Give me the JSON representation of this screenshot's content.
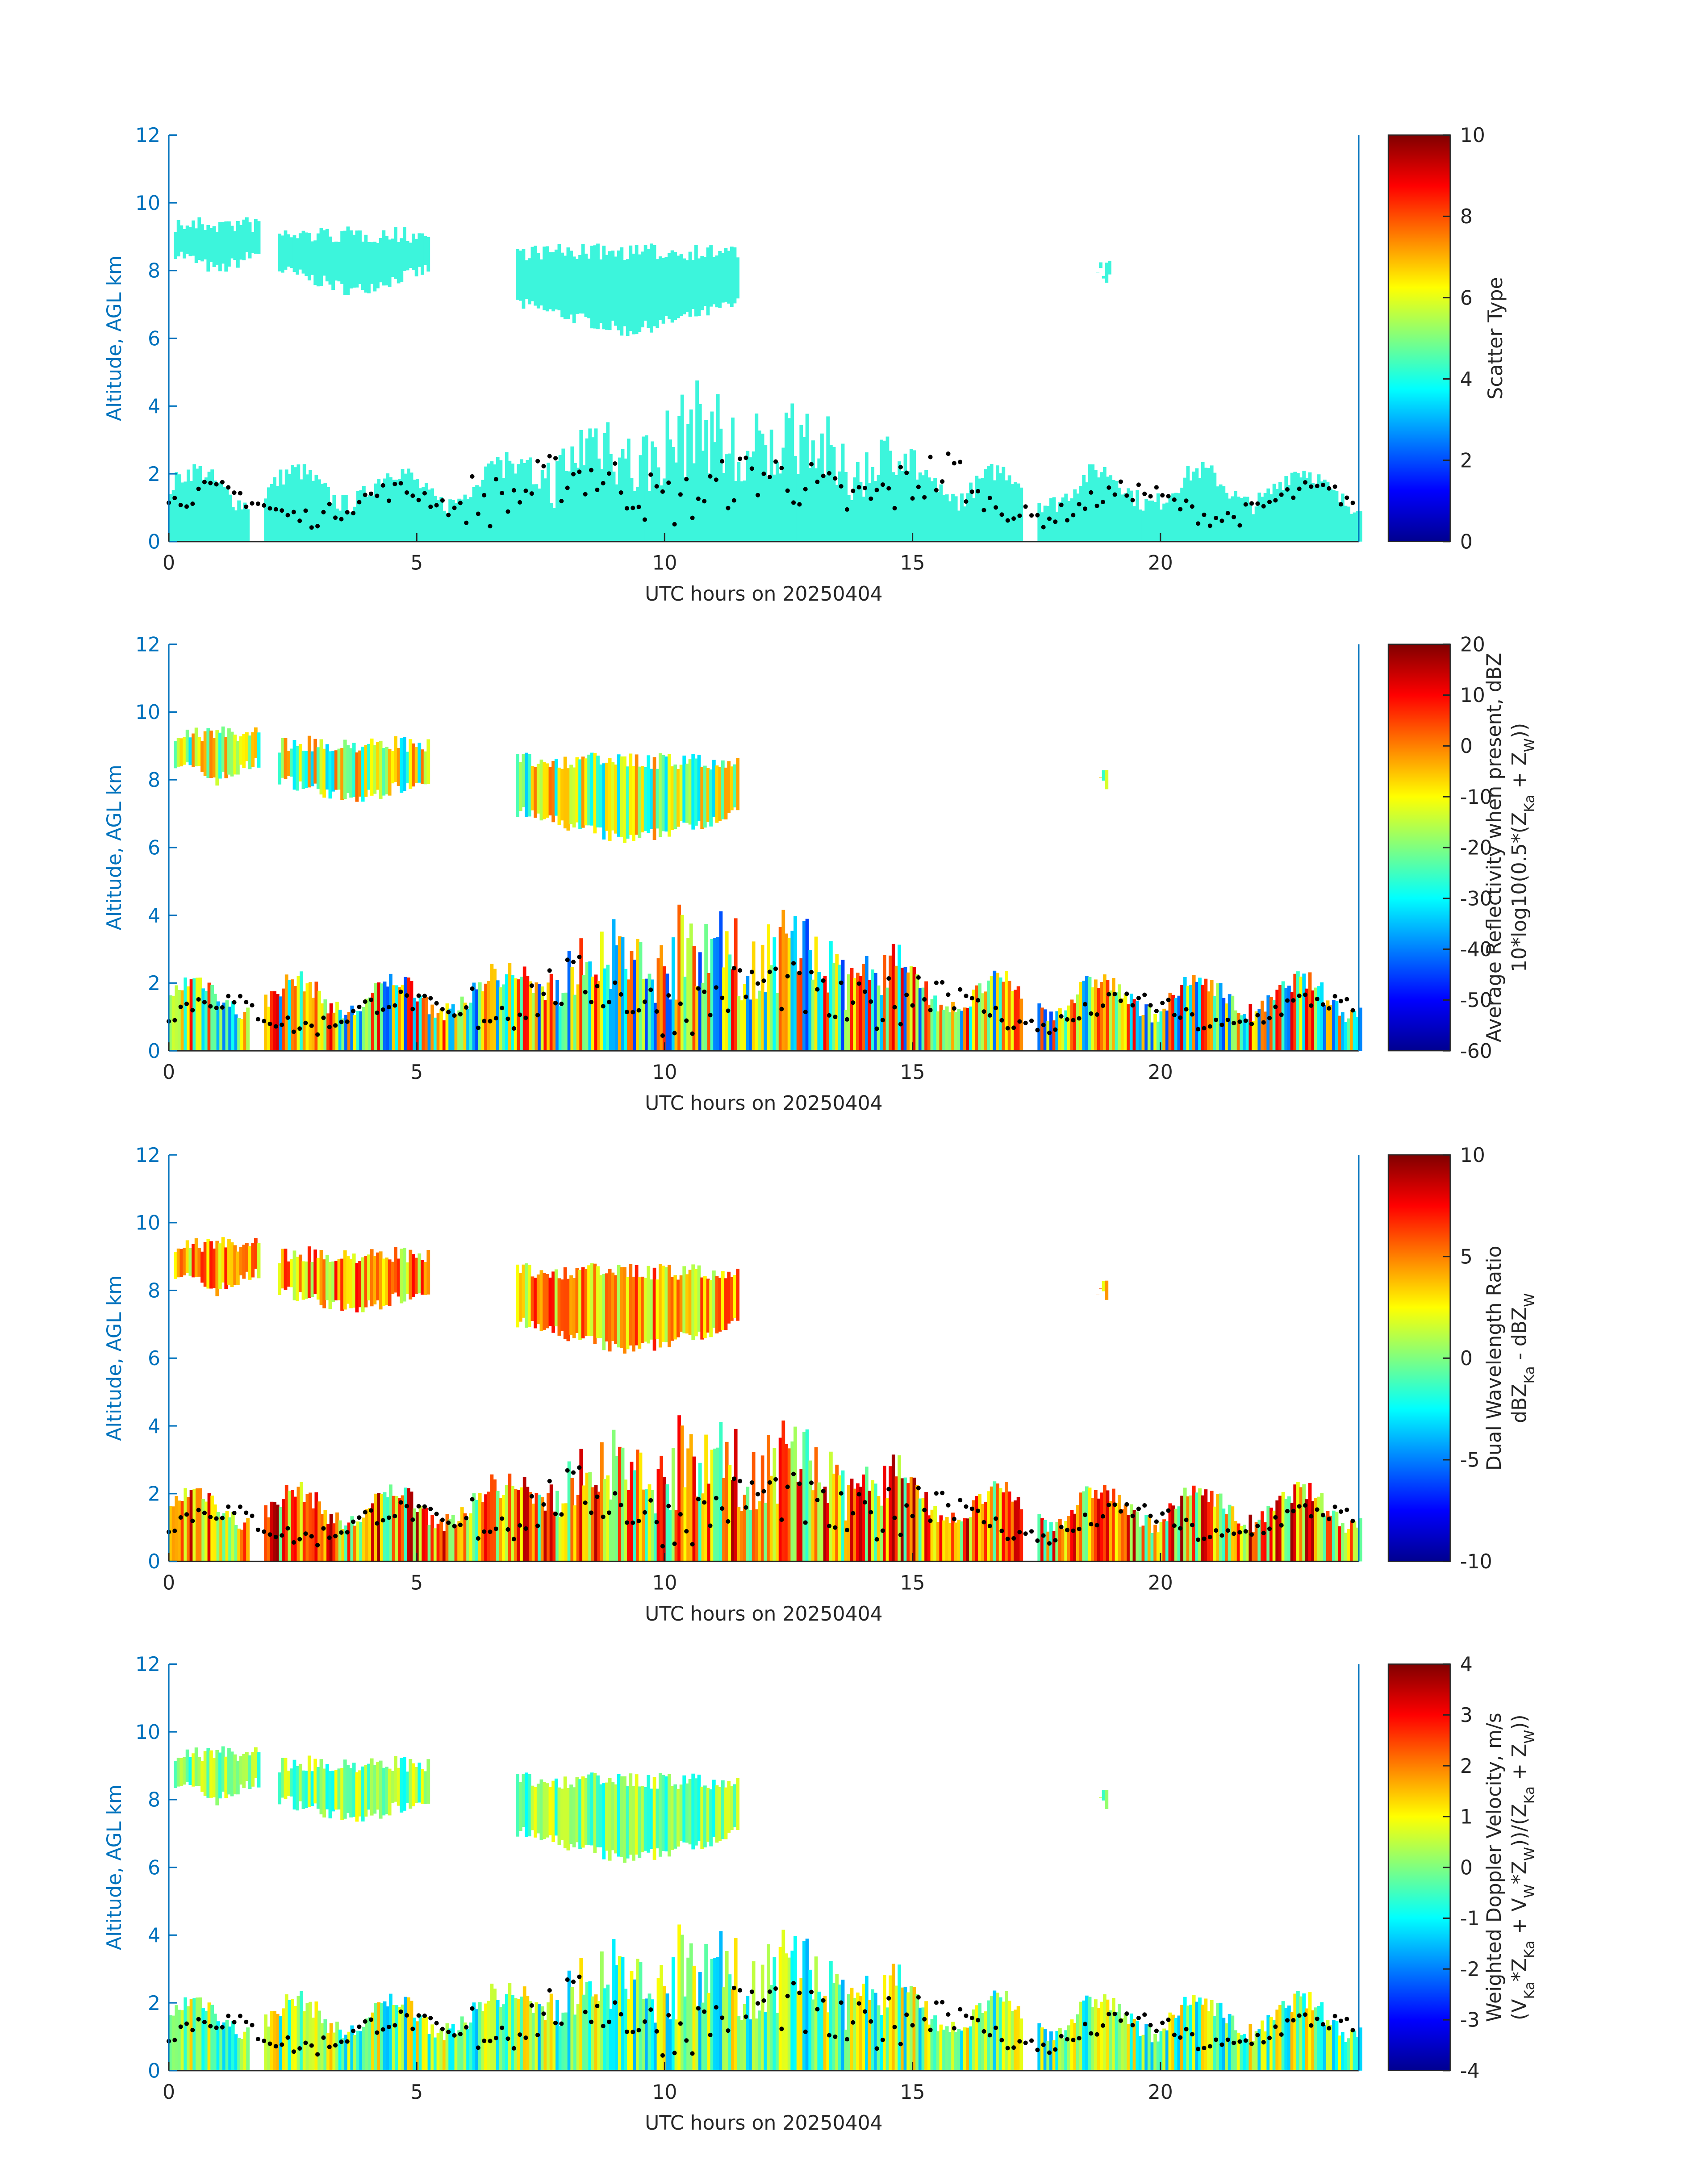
{
  "chart_data": [
    {
      "type": "heatmap",
      "colormap": "jet",
      "xlabel": "UTC hours on 20250404",
      "ylabel": "Altitude, AGL km",
      "xlim": [
        0,
        24
      ],
      "xticks": [
        0,
        5,
        10,
        15,
        20
      ],
      "ylim": [
        0,
        12
      ],
      "yticks": [
        0,
        2,
        4,
        6,
        8,
        10,
        12
      ],
      "colorbar": {
        "label": [
          "Scatter Type"
        ],
        "lim": [
          0,
          10
        ],
        "ticks": [
          0,
          2,
          4,
          6,
          8,
          10
        ]
      }
    },
    {
      "type": "heatmap",
      "colormap": "jet",
      "xlabel": "UTC hours on 20250404",
      "ylabel": "Altitude, AGL km",
      "xlim": [
        0,
        24
      ],
      "xticks": [
        0,
        5,
        10,
        15,
        20
      ],
      "ylim": [
        0,
        12
      ],
      "yticks": [
        0,
        2,
        4,
        6,
        8,
        10,
        12
      ],
      "colorbar": {
        "label": [
          "Average Reflectivity when present, dBZ",
          "10*log10(0.5*(Z_{Ka} + Z_{W}))"
        ],
        "lim": [
          -60,
          20
        ],
        "ticks": [
          -60,
          -50,
          -40,
          -30,
          -20,
          -10,
          0,
          10,
          20
        ]
      }
    },
    {
      "type": "heatmap",
      "colormap": "jet",
      "xlabel": "UTC hours on 20250404",
      "ylabel": "Altitude, AGL km",
      "xlim": [
        0,
        24
      ],
      "xticks": [
        0,
        5,
        10,
        15,
        20
      ],
      "ylim": [
        0,
        12
      ],
      "yticks": [
        0,
        2,
        4,
        6,
        8,
        10,
        12
      ],
      "colorbar": {
        "label": [
          "Dual Wavelength Ratio",
          "dBZ_{Ka} - dBZ_{W}"
        ],
        "lim": [
          -10,
          10
        ],
        "ticks": [
          -10,
          -5,
          0,
          5,
          10
        ]
      }
    },
    {
      "type": "heatmap",
      "colormap": "jet",
      "xlabel": "UTC hours on 20250404",
      "ylabel": "Altitude, AGL km",
      "xlim": [
        0,
        24
      ],
      "xticks": [
        0,
        5,
        10,
        15,
        20
      ],
      "ylim": [
        0,
        12
      ],
      "yticks": [
        0,
        2,
        4,
        6,
        8,
        10,
        12
      ],
      "colorbar": {
        "label": [
          "Weighted Doppler Velocity, m/s",
          "(V_{Ka}*Z_{Ka} + V_{W}*Z_{W}))/(Z_{Ka} + Z_{W}))"
        ],
        "lim": [
          -4,
          4
        ],
        "ticks": [
          -4,
          -3,
          -2,
          -1,
          0,
          1,
          2,
          3,
          4
        ]
      }
    }
  ]
}
